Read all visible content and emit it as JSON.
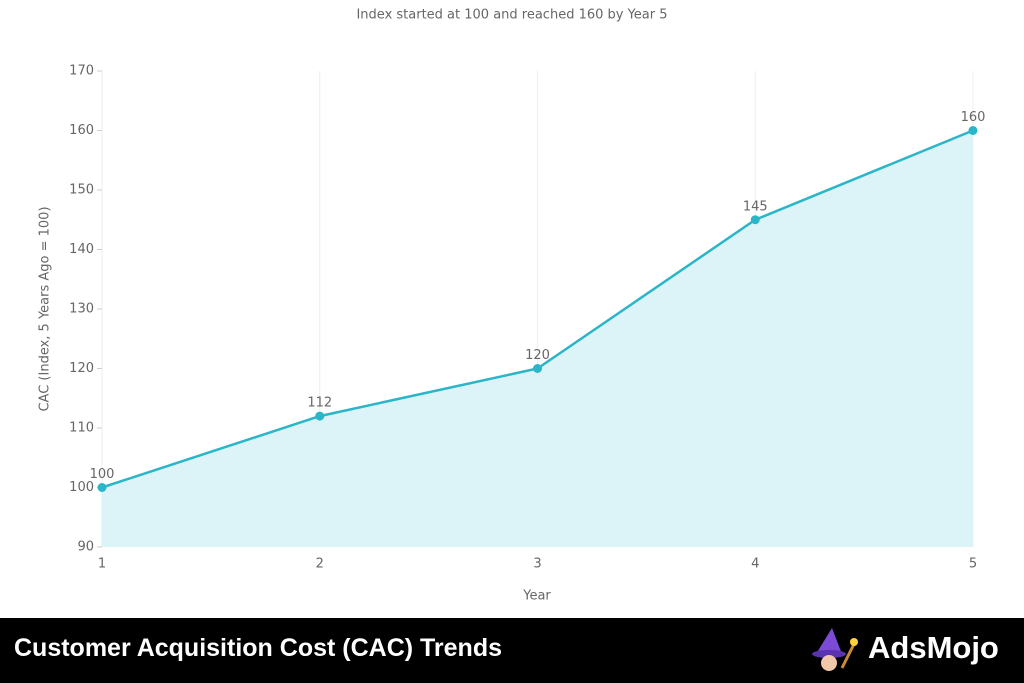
{
  "chart_data": {
    "type": "area-line",
    "title": "Customer Acquisition Cost (CAC) Trends",
    "subtitle": "Index started at 100 and reached 160 by Year 5",
    "x_label": "Year",
    "y_label": "CAC (Index, 5 Years Ago = 100)",
    "x": [
      1,
      2,
      3,
      4,
      5
    ],
    "values": [
      100,
      112,
      120,
      145,
      160
    ],
    "color": "#2bb5c8",
    "fill_color": "#dcf4f8",
    "xlim": [
      1,
      5
    ],
    "ylim": [
      90,
      170
    ],
    "xticks": [
      1,
      2,
      3,
      4,
      5
    ],
    "yticks": [
      90,
      100,
      110,
      120,
      130,
      140,
      150,
      160,
      170
    ],
    "xgrid": true,
    "ygrid": false,
    "data_labels": true
  },
  "brand": "AdsMojo"
}
